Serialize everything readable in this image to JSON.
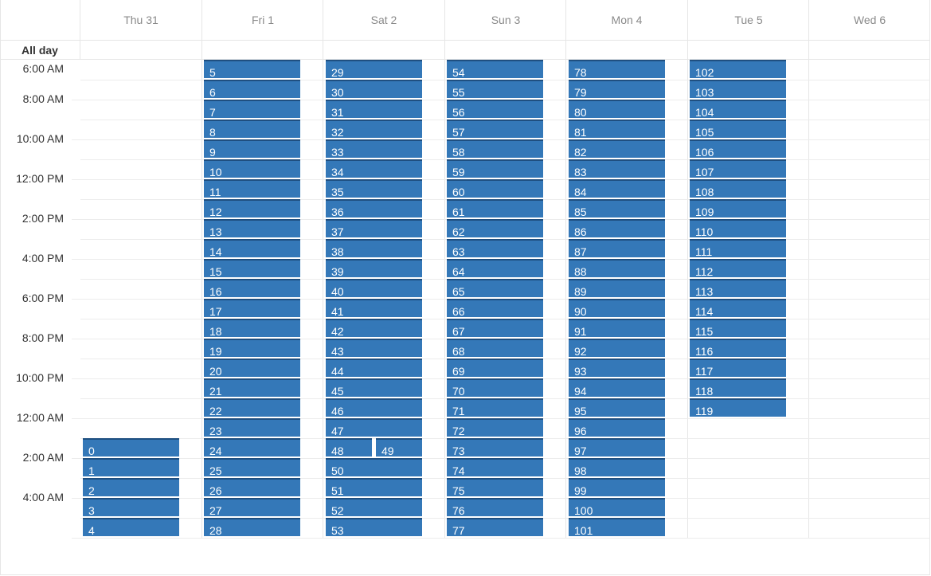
{
  "header": {
    "days": [
      "Thu 31",
      "Fri 1",
      "Sat 2",
      "Sun 3",
      "Mon 4",
      "Tue 5",
      "Wed 6"
    ]
  },
  "all_day_label": "All day",
  "time_labels": [
    "6:00 AM",
    "8:00 AM",
    "10:00 AM",
    "12:00 PM",
    "2:00 PM",
    "4:00 PM",
    "6:00 PM",
    "8:00 PM",
    "10:00 PM",
    "12:00 AM",
    "2:00 AM",
    "4:00 AM"
  ],
  "events": {
    "thu31": [
      "0",
      "1",
      "2",
      "3",
      "4"
    ],
    "fri1": [
      "5",
      "6",
      "7",
      "8",
      "9",
      "10",
      "11",
      "12",
      "13",
      "14",
      "15",
      "16",
      "17",
      "18",
      "19",
      "20",
      "21",
      "22",
      "23",
      "24",
      "25",
      "26",
      "27",
      "28"
    ],
    "sat2_before": [
      "29",
      "30",
      "31",
      "32",
      "33",
      "34",
      "35",
      "36",
      "37",
      "38",
      "39",
      "40",
      "41",
      "42",
      "43",
      "44",
      "45",
      "46",
      "47"
    ],
    "sat2_split": [
      "48",
      "49"
    ],
    "sat2_after": [
      "50",
      "51",
      "52",
      "53"
    ],
    "sun3": [
      "54",
      "55",
      "56",
      "57",
      "58",
      "59",
      "60",
      "61",
      "62",
      "63",
      "64",
      "65",
      "66",
      "67",
      "68",
      "69",
      "70",
      "71",
      "72",
      "73",
      "74",
      "75",
      "76",
      "77"
    ],
    "mon4": [
      "78",
      "79",
      "80",
      "81",
      "82",
      "83",
      "84",
      "85",
      "86",
      "87",
      "88",
      "89",
      "90",
      "91",
      "92",
      "93",
      "94",
      "95",
      "96",
      "97",
      "98",
      "99",
      "100",
      "101"
    ],
    "tue5": [
      "102",
      "103",
      "104",
      "105",
      "106",
      "107",
      "108",
      "109",
      "110",
      "111",
      "112",
      "113",
      "114",
      "115",
      "116",
      "117",
      "118",
      "119"
    ]
  },
  "colors": {
    "event": "#3478b8",
    "event_border": "#1f4f80",
    "grid": "#e6e6e6"
  }
}
